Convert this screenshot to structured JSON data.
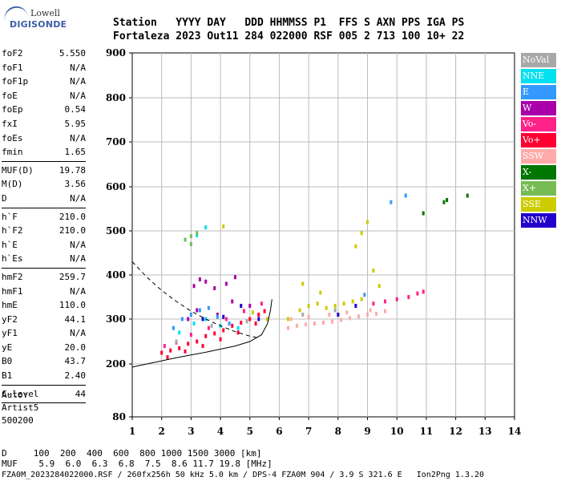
{
  "logo": {
    "line1": "Lowell",
    "line2": "DIGISONDE"
  },
  "header": {
    "line1": "Station   YYYY DAY   DDD HHMMSS P1  FFS S AXN PPS IGA PS",
    "line2": "Fortaleza 2023 Out11 284 022000 RSF 005 2 713 100 10+ 22"
  },
  "params": {
    "group1": [
      {
        "name": "foF2",
        "value": "5.550"
      },
      {
        "name": "foF1",
        "value": "N/A"
      },
      {
        "name": "foF1p",
        "value": "N/A"
      },
      {
        "name": "foE",
        "value": "N/A"
      },
      {
        "name": "foEp",
        "value": "0.54"
      },
      {
        "name": "fxI",
        "value": "5.95"
      },
      {
        "name": "foEs",
        "value": "N/A"
      },
      {
        "name": "fmin",
        "value": "1.65"
      }
    ],
    "group2": [
      {
        "name": "MUF(D)",
        "value": "19.78"
      },
      {
        "name": "M(D)",
        "value": "3.56"
      },
      {
        "name": "D",
        "value": "N/A"
      }
    ],
    "group3": [
      {
        "name": "h`F",
        "value": "210.0"
      },
      {
        "name": "h`F2",
        "value": "210.0"
      },
      {
        "name": "h`E",
        "value": "N/A"
      },
      {
        "name": "h`Es",
        "value": "N/A"
      }
    ],
    "group4": [
      {
        "name": "hmF2",
        "value": "259.7"
      },
      {
        "name": "hmF1",
        "value": "N/A"
      },
      {
        "name": "hmE",
        "value": "110.0"
      },
      {
        "name": "yF2",
        "value": "44.1"
      },
      {
        "name": "yF1",
        "value": "N/A"
      },
      {
        "name": "yE",
        "value": "20.0"
      },
      {
        "name": "B0",
        "value": "43.7"
      },
      {
        "name": "B1",
        "value": "2.40"
      }
    ],
    "group5": [
      {
        "name": "C-level",
        "value": "44"
      }
    ]
  },
  "auto": {
    "line1": "Auto:",
    "line2": "Artist5",
    "line3": "500200"
  },
  "legend": [
    {
      "label": "NoVal",
      "color": "#a8a8a8"
    },
    {
      "label": "NNE",
      "color": "#00e0f0"
    },
    {
      "label": "E",
      "color": "#3399ff"
    },
    {
      "label": "W",
      "color": "#aa00aa"
    },
    {
      "label": "Vo-",
      "color": "#ff2288"
    },
    {
      "label": "Vo+",
      "color": "#ff0033"
    },
    {
      "label": "SSW",
      "color": "#ffaaaa"
    },
    {
      "label": "X-",
      "color": "#007700"
    },
    {
      "label": "X+",
      "color": "#77bb55"
    },
    {
      "label": "SSE",
      "color": "#cccc00"
    },
    {
      "label": "NNW",
      "color": "#2200cc"
    }
  ],
  "footer": {
    "row_d": "D     100  200  400  600  800 1000 1500 3000 [km]",
    "row_muf": "MUF    5.9  6.0  6.3  6.8  7.5  8.6 11.7 19.8 [MHz]",
    "line": "FZA0M_2023284022000.RSF / 260fx256h 50 kHz 5.0 km / DPS-4 FZA0M 904 / 3.9 S 321.6 E   Ion2Png 1.3.20"
  },
  "chart_data": {
    "type": "scatter",
    "xlim": [
      1,
      14
    ],
    "ylim": [
      80,
      900
    ],
    "x_ticks": [
      1,
      2,
      3,
      4,
      5,
      6,
      7,
      8,
      9,
      10,
      11,
      12,
      13,
      14
    ],
    "y_ticks": [
      80,
      200,
      300,
      400,
      500,
      600,
      700,
      800,
      900
    ],
    "y_tick_labels": [
      "80",
      "200",
      "300",
      "400",
      "500",
      "600",
      "700",
      "800",
      "900"
    ],
    "grid": true,
    "series": [
      {
        "name": "Vo+",
        "color": "#ff0033",
        "points": [
          [
            2.0,
            225
          ],
          [
            2.3,
            230
          ],
          [
            2.6,
            235
          ],
          [
            2.9,
            245
          ],
          [
            3.2,
            250
          ],
          [
            3.5,
            262
          ],
          [
            3.8,
            268
          ],
          [
            4.1,
            275
          ],
          [
            4.4,
            285
          ],
          [
            4.7,
            292
          ],
          [
            5.0,
            300
          ],
          [
            5.3,
            310
          ],
          [
            5.5,
            318
          ],
          [
            2.2,
            215
          ],
          [
            2.8,
            228
          ],
          [
            3.4,
            240
          ],
          [
            4.0,
            255
          ],
          [
            4.6,
            270
          ],
          [
            5.2,
            290
          ],
          [
            5.6,
            300
          ]
        ]
      },
      {
        "name": "Vo-",
        "color": "#ff2288",
        "points": [
          [
            2.1,
            240
          ],
          [
            2.5,
            248
          ],
          [
            3.0,
            265
          ],
          [
            3.6,
            280
          ],
          [
            4.2,
            300
          ],
          [
            4.8,
            318
          ],
          [
            5.4,
            335
          ],
          [
            9.2,
            335
          ],
          [
            9.6,
            340
          ],
          [
            10.0,
            345
          ],
          [
            10.4,
            350
          ],
          [
            10.7,
            358
          ],
          [
            10.9,
            362
          ]
        ]
      },
      {
        "name": "W",
        "color": "#aa00aa",
        "points": [
          [
            3.1,
            375
          ],
          [
            3.3,
            390
          ],
          [
            3.5,
            385
          ],
          [
            3.8,
            370
          ],
          [
            4.2,
            380
          ],
          [
            4.5,
            395
          ],
          [
            2.9,
            300
          ],
          [
            3.2,
            320
          ],
          [
            3.9,
            310
          ],
          [
            4.4,
            340
          ],
          [
            5.0,
            330
          ]
        ]
      },
      {
        "name": "E",
        "color": "#3399ff",
        "points": [
          [
            2.4,
            280
          ],
          [
            2.7,
            300
          ],
          [
            3.0,
            310
          ],
          [
            3.3,
            320
          ],
          [
            3.6,
            325
          ],
          [
            3.9,
            305
          ],
          [
            4.3,
            290
          ],
          [
            8.9,
            355
          ],
          [
            9.8,
            565
          ],
          [
            10.3,
            580
          ]
        ]
      },
      {
        "name": "NNE",
        "color": "#00e0f0",
        "points": [
          [
            2.6,
            270
          ],
          [
            3.1,
            290
          ],
          [
            3.5,
            300
          ],
          [
            4.0,
            285
          ],
          [
            4.6,
            280
          ],
          [
            3.2,
            490
          ],
          [
            3.5,
            508
          ]
        ]
      },
      {
        "name": "SSE",
        "color": "#cccc00",
        "points": [
          [
            6.3,
            300
          ],
          [
            6.7,
            320
          ],
          [
            7.0,
            330
          ],
          [
            7.3,
            335
          ],
          [
            7.6,
            325
          ],
          [
            7.9,
            330
          ],
          [
            8.2,
            335
          ],
          [
            8.5,
            340
          ],
          [
            8.8,
            345
          ],
          [
            6.8,
            380
          ],
          [
            7.4,
            360
          ],
          [
            8.6,
            465
          ],
          [
            8.8,
            495
          ],
          [
            9.0,
            520
          ],
          [
            9.2,
            410
          ],
          [
            9.4,
            375
          ],
          [
            4.1,
            510
          ],
          [
            5.1,
            315
          ],
          [
            5.6,
            300
          ]
        ]
      },
      {
        "name": "SSW",
        "color": "#ffaaaa",
        "points": [
          [
            6.3,
            280
          ],
          [
            6.6,
            285
          ],
          [
            6.9,
            288
          ],
          [
            7.2,
            290
          ],
          [
            7.5,
            292
          ],
          [
            7.8,
            294
          ],
          [
            8.1,
            298
          ],
          [
            8.4,
            302
          ],
          [
            8.7,
            306
          ],
          [
            9.0,
            310
          ],
          [
            9.3,
            312
          ],
          [
            9.6,
            318
          ],
          [
            6.4,
            300
          ],
          [
            7.0,
            305
          ],
          [
            7.7,
            310
          ],
          [
            8.3,
            315
          ],
          [
            9.1,
            320
          ]
        ]
      },
      {
        "name": "X+",
        "color": "#77bb55",
        "points": [
          [
            2.8,
            480
          ],
          [
            3.0,
            488
          ],
          [
            3.2,
            495
          ],
          [
            3.0,
            470
          ]
        ]
      },
      {
        "name": "X-",
        "color": "#007700",
        "points": [
          [
            10.9,
            540
          ],
          [
            11.6,
            565
          ],
          [
            11.7,
            570
          ],
          [
            12.4,
            580
          ]
        ]
      },
      {
        "name": "NNW",
        "color": "#2200cc",
        "points": [
          [
            3.4,
            300
          ],
          [
            4.1,
            305
          ],
          [
            4.7,
            330
          ],
          [
            5.3,
            300
          ],
          [
            8.0,
            310
          ],
          [
            8.6,
            330
          ]
        ]
      },
      {
        "name": "NoVal",
        "color": "#a8a8a8",
        "points": [
          [
            2.5,
            250
          ],
          [
            3.7,
            285
          ],
          [
            4.9,
            295
          ],
          [
            6.8,
            310
          ],
          [
            7.9,
            320
          ]
        ]
      }
    ],
    "curves": [
      {
        "style": "dashed",
        "points": [
          [
            1.0,
            430
          ],
          [
            1.5,
            395
          ],
          [
            2.0,
            365
          ],
          [
            2.5,
            340
          ],
          [
            3.0,
            318
          ],
          [
            3.5,
            300
          ],
          [
            4.0,
            285
          ],
          [
            4.5,
            272
          ],
          [
            5.0,
            262
          ],
          [
            5.3,
            258
          ]
        ]
      },
      {
        "style": "solid",
        "points": [
          [
            1.0,
            193
          ],
          [
            1.5,
            200
          ],
          [
            2.0,
            207
          ],
          [
            2.5,
            214
          ],
          [
            3.0,
            220
          ],
          [
            3.5,
            226
          ],
          [
            4.0,
            233
          ],
          [
            4.5,
            240
          ],
          [
            5.0,
            250
          ],
          [
            5.4,
            265
          ],
          [
            5.6,
            290
          ],
          [
            5.7,
            320
          ],
          [
            5.75,
            345
          ]
        ]
      }
    ]
  }
}
